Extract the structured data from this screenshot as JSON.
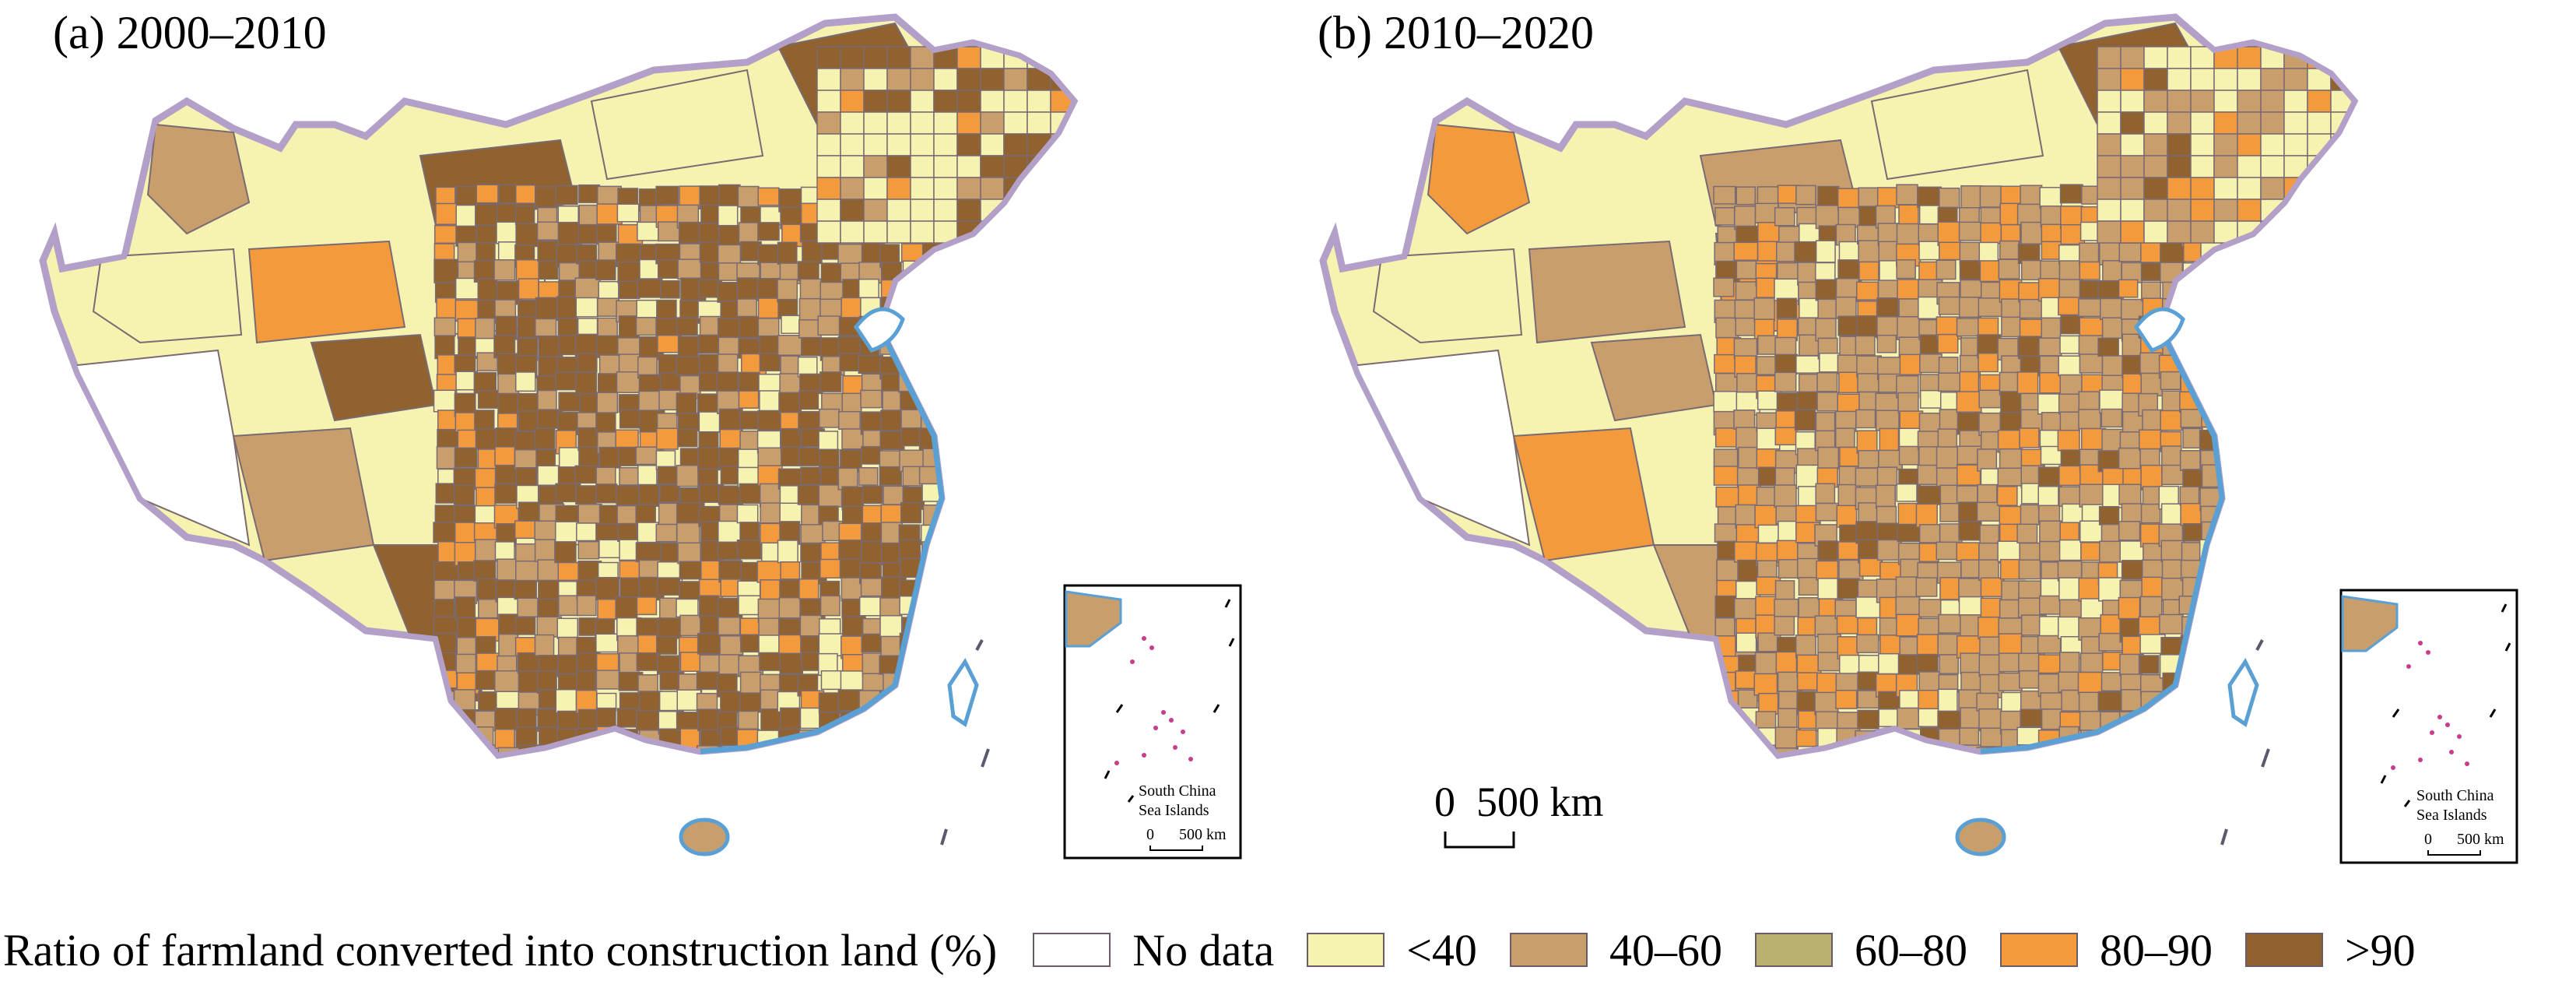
{
  "panels": [
    {
      "id": "a",
      "title": "(a) 2000–2010",
      "region_classes": [
        "nodata",
        "c40",
        "c4060",
        "c8090",
        "c90",
        "c4060",
        "c90",
        "c40",
        "c90",
        "c8090",
        "c40",
        "c90",
        "c4060",
        "c90",
        "c90",
        "c4060",
        "c90",
        "c8090",
        "c90",
        "c4060",
        "c90",
        "c90",
        "c4060",
        "c90"
      ],
      "inset": {
        "label_1": "South China",
        "label_2": "Sea Islands",
        "scale_zero": "0",
        "scale_value": "500 km"
      }
    },
    {
      "id": "b",
      "title": "(b) 2010–2020",
      "region_classes": [
        "nodata",
        "c40",
        "c8090",
        "c4060",
        "c4060",
        "c8090",
        "c4060",
        "c40",
        "c90",
        "c4060",
        "c8090",
        "c4060",
        "c4060",
        "c90",
        "c4060",
        "c8090",
        "c4060",
        "c90",
        "c4060",
        "c4060",
        "c90",
        "c4060",
        "c8090",
        "c4060"
      ],
      "scalebar": {
        "zero": "0",
        "value": "500 km"
      },
      "inset": {
        "label_1": "South China",
        "label_2": "Sea Islands",
        "scale_zero": "0",
        "scale_value": "500 km"
      }
    }
  ],
  "legend": {
    "title": "Ratio of farmland converted into construction land (%)",
    "classes": [
      {
        "key": "nodata",
        "label": "No data",
        "color": "#ffffff"
      },
      {
        "key": "c40",
        "label": "<40",
        "color": "#f6f3b1"
      },
      {
        "key": "c4060",
        "label": "40–60",
        "color": "#c79e6c"
      },
      {
        "key": "c6080",
        "label": "60–80",
        "color": "#b8b26e"
      },
      {
        "key": "c8090",
        "label": "80–90",
        "color": "#f39a3d"
      },
      {
        "key": "c90",
        "label": ">90",
        "color": "#8f6230"
      }
    ]
  },
  "colors": {
    "border": "#b3a0c8",
    "coast": "#5aa0d5",
    "islands": "#c83c8c",
    "region_line": "#7a6a72"
  }
}
